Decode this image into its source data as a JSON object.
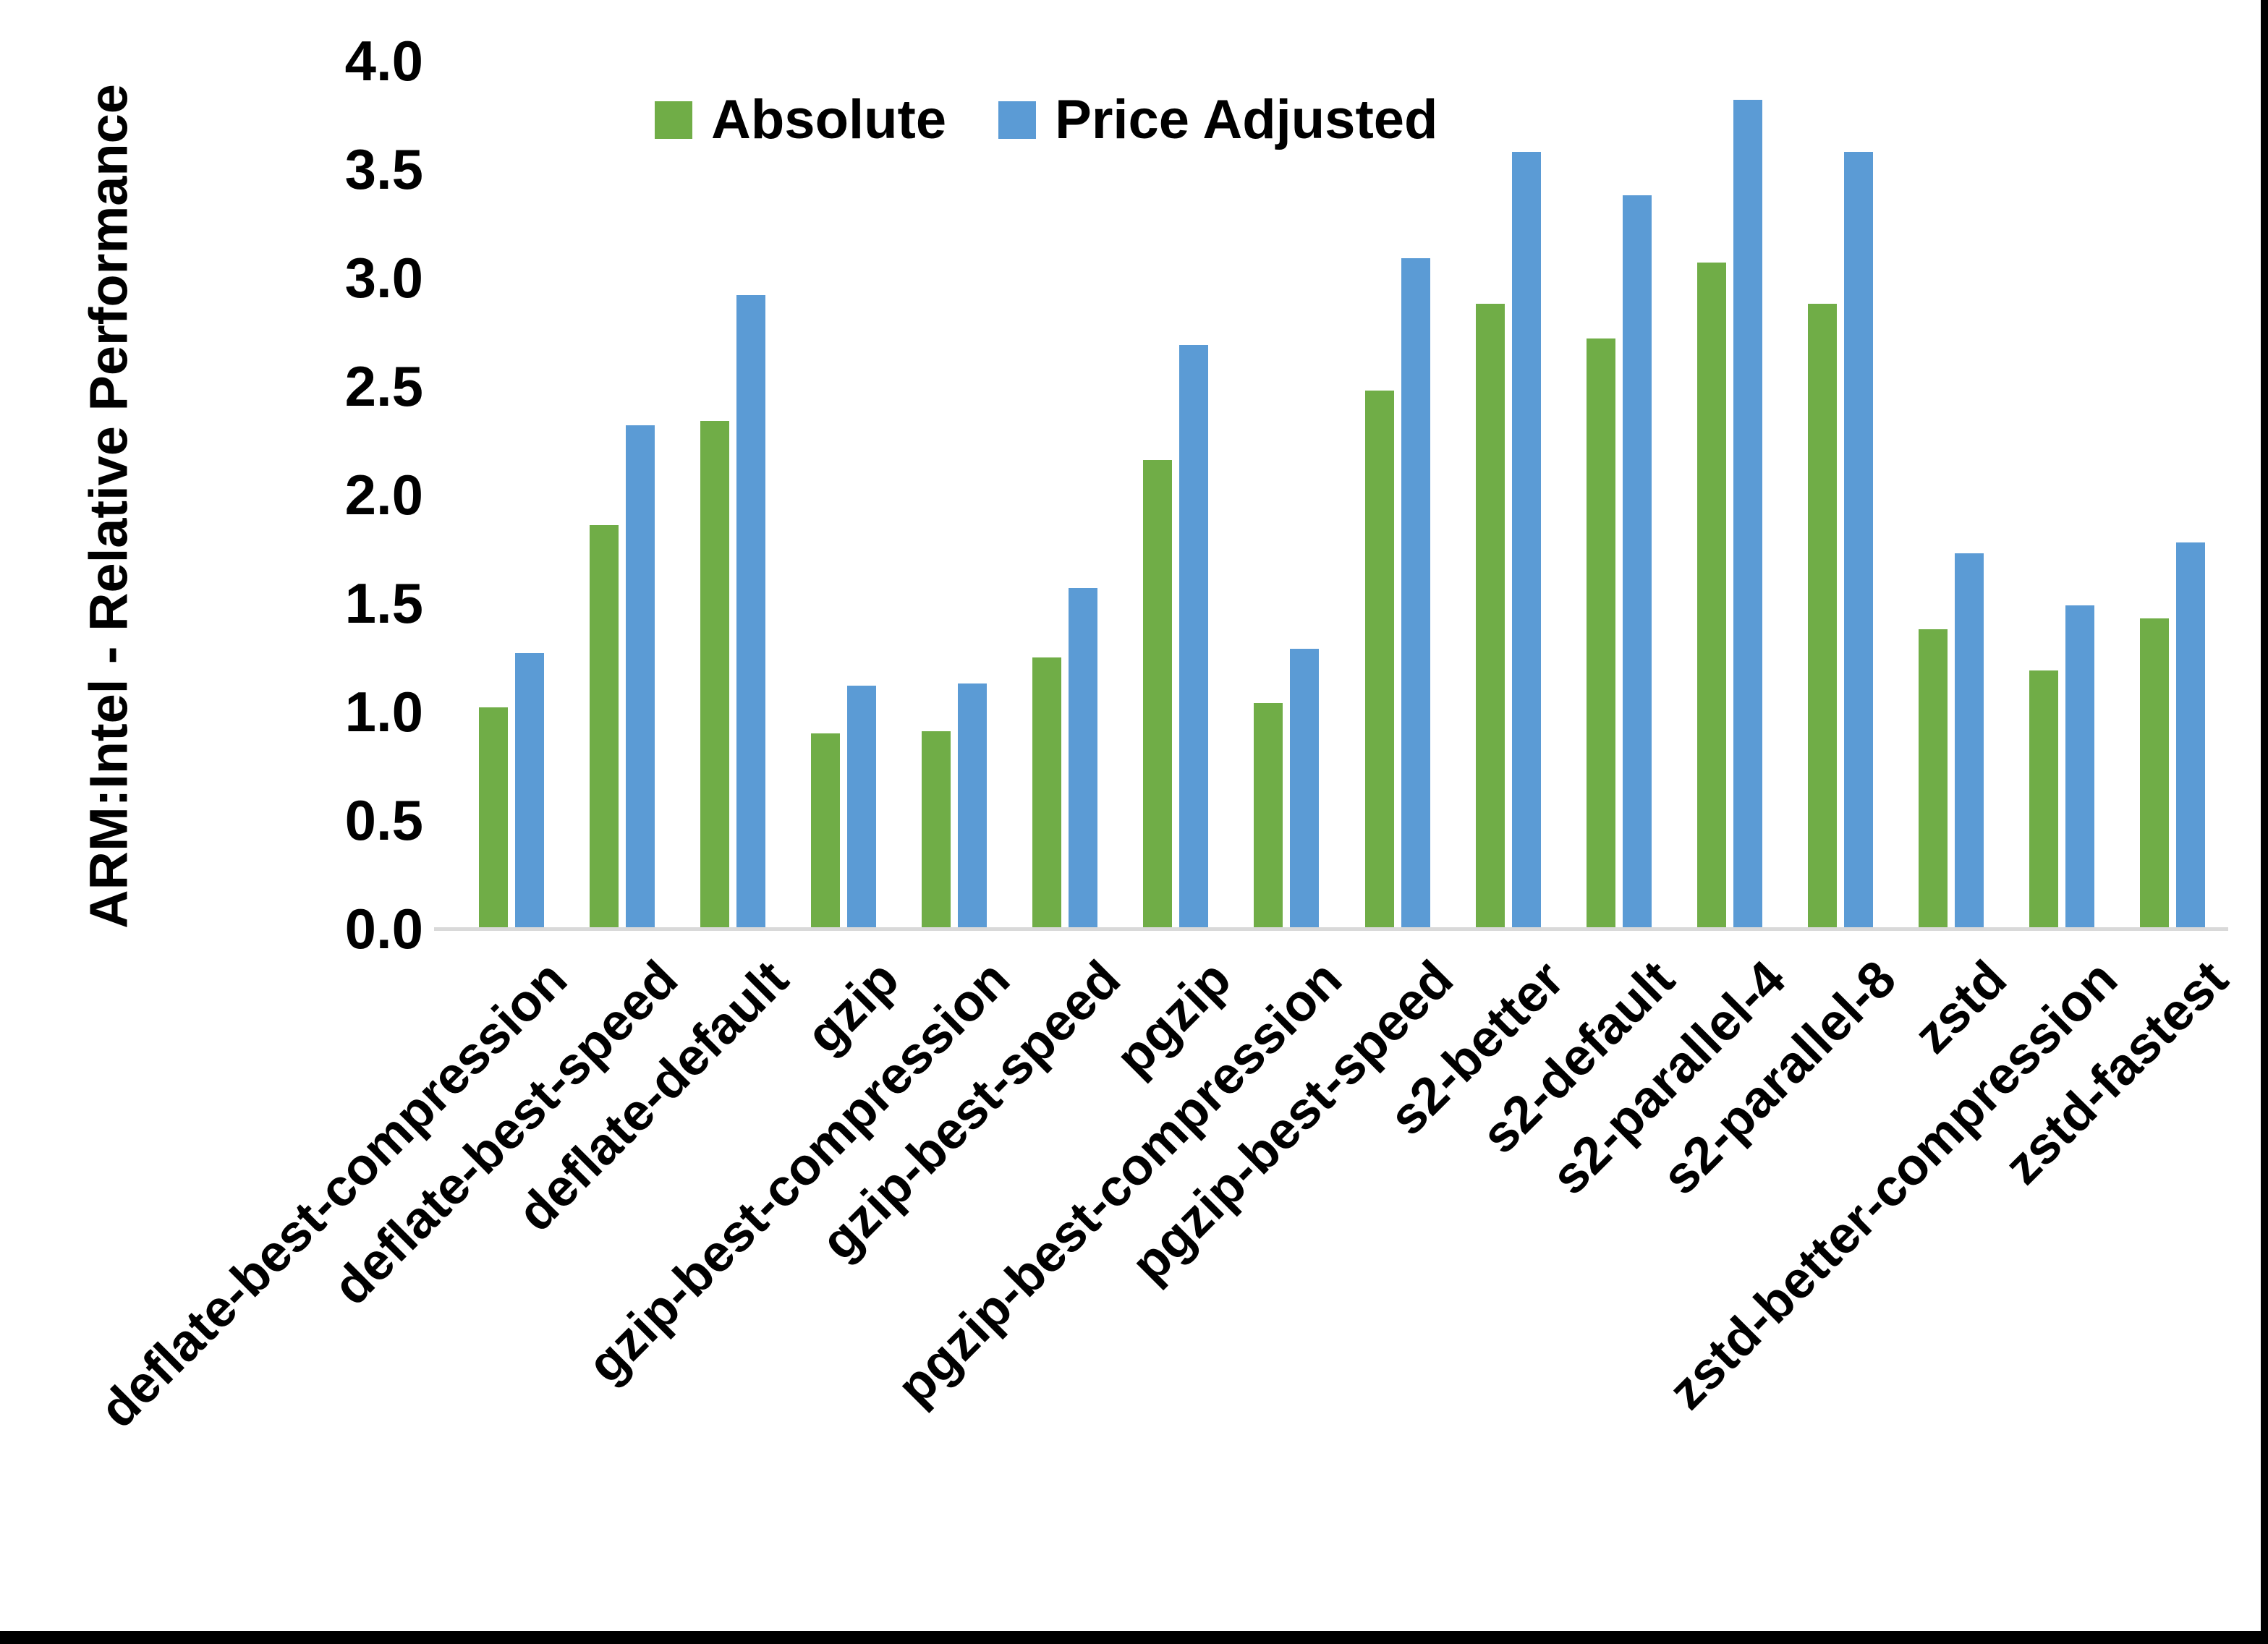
{
  "colors": {
    "background": "#FFFFFF",
    "text": "#000000",
    "axis_line": "#D9D9D9",
    "frame_border": "#000000",
    "series_absolute": "#70AD47",
    "series_price_adjusted": "#5B9BD5"
  },
  "chart_data": {
    "type": "bar",
    "title": "",
    "xlabel": "",
    "ylabel": "ARM:Intel - Relative Performance",
    "ylim": [
      0.0,
      4.0
    ],
    "ytick_step": 0.5,
    "yticks": [
      "0.0",
      "0.5",
      "1.0",
      "1.5",
      "2.0",
      "2.5",
      "3.0",
      "3.5",
      "4.0"
    ],
    "grid": false,
    "legend_position": "top-center",
    "categories": [
      "deflate-best-compression",
      "deflate-best-speed",
      "deflate-default",
      "gzip",
      "gzip-best-compression",
      "gzip-best-speed",
      "pgzip",
      "pgzip-best-compression",
      "pgzip-best-speed",
      "s2-better",
      "s2-default",
      "s2-parallel-4",
      "s2-parallel-8",
      "zstd",
      "zstd-better-compression",
      "zstd-fastest"
    ],
    "series": [
      {
        "name": "Absolute",
        "color": "#70AD47",
        "values": [
          1.02,
          1.86,
          2.34,
          0.9,
          0.91,
          1.25,
          2.16,
          1.04,
          2.48,
          2.88,
          2.72,
          3.07,
          2.88,
          1.38,
          1.19,
          1.43
        ]
      },
      {
        "name": "Price Adjusted",
        "color": "#5B9BD5",
        "values": [
          1.27,
          2.32,
          2.92,
          1.12,
          1.13,
          1.57,
          2.69,
          1.29,
          3.09,
          3.58,
          3.38,
          3.82,
          3.58,
          1.73,
          1.49,
          1.78
        ]
      }
    ]
  }
}
